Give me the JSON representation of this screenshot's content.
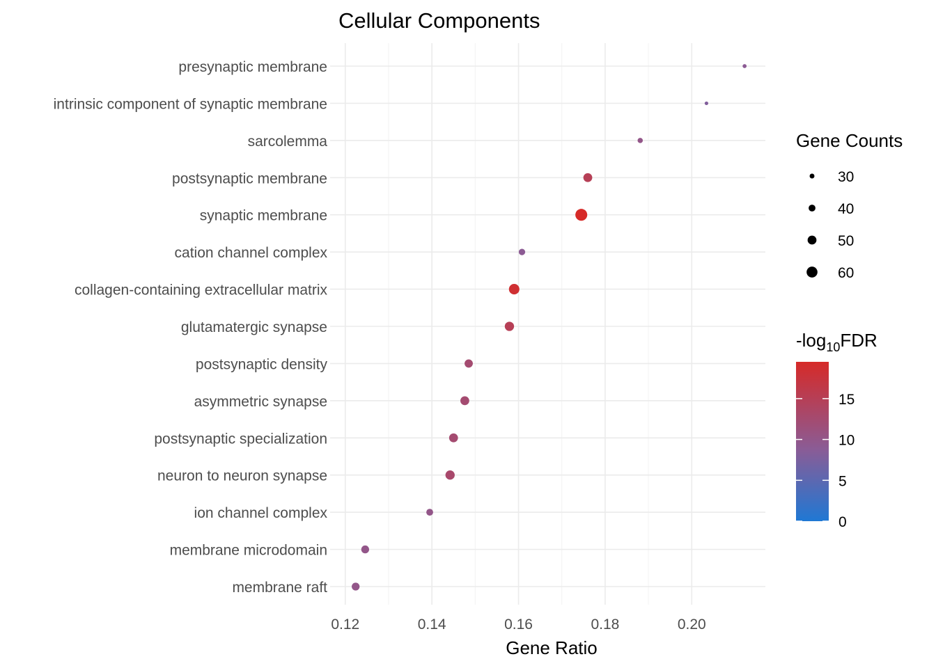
{
  "chart_data": {
    "type": "scatter",
    "title": "Cellular Components",
    "xlabel": "Gene Ratio",
    "ylabel": "",
    "xlim": [
      0.1165,
      0.217
    ],
    "x_ticks": [
      0.12,
      0.14,
      0.16,
      0.18,
      0.2
    ],
    "x_tick_labels": [
      "0.12",
      "0.14",
      "0.16",
      "0.18",
      "0.20"
    ],
    "grid": true,
    "categories": [
      "presynaptic membrane",
      "intrinsic component of synaptic membrane",
      "sarcolemma",
      "postsynaptic membrane",
      "synaptic membrane",
      "cation channel complex",
      "collagen-containing extracellular matrix",
      "glutamatergic synapse",
      "postsynaptic density",
      "asymmetric synapse",
      "postsynaptic specialization",
      "neuron to neuron synapse",
      "ion channel complex",
      "membrane microdomain",
      "membrane raft"
    ],
    "points": [
      {
        "term": "presynaptic membrane",
        "gene_ratio": 0.2122,
        "count": 26,
        "neg_log10_fdr": 9
      },
      {
        "term": "intrinsic component of synaptic membrane",
        "gene_ratio": 0.2034,
        "count": 24,
        "neg_log10_fdr": 8
      },
      {
        "term": "sarcolemma",
        "gene_ratio": 0.1881,
        "count": 32,
        "neg_log10_fdr": 10
      },
      {
        "term": "postsynaptic membrane",
        "gene_ratio": 0.176,
        "count": 50,
        "neg_log10_fdr": 15
      },
      {
        "term": "synaptic membrane",
        "gene_ratio": 0.1745,
        "count": 65,
        "neg_log10_fdr": 19.5
      },
      {
        "term": "cation channel complex",
        "gene_ratio": 0.1608,
        "count": 38,
        "neg_log10_fdr": 9
      },
      {
        "term": "collagen-containing extracellular matrix",
        "gene_ratio": 0.159,
        "count": 58,
        "neg_log10_fdr": 18.5
      },
      {
        "term": "glutamatergic synapse",
        "gene_ratio": 0.1579,
        "count": 52,
        "neg_log10_fdr": 15
      },
      {
        "term": "postsynaptic density",
        "gene_ratio": 0.1485,
        "count": 47,
        "neg_log10_fdr": 12.5
      },
      {
        "term": "asymmetric synapse",
        "gene_ratio": 0.1476,
        "count": 50,
        "neg_log10_fdr": 12.5
      },
      {
        "term": "postsynaptic specialization",
        "gene_ratio": 0.145,
        "count": 50,
        "neg_log10_fdr": 12.5
      },
      {
        "term": "neuron to neuron synapse",
        "gene_ratio": 0.1442,
        "count": 52,
        "neg_log10_fdr": 13
      },
      {
        "term": "ion channel complex",
        "gene_ratio": 0.1395,
        "count": 40,
        "neg_log10_fdr": 10
      },
      {
        "term": "membrane microdomain",
        "gene_ratio": 0.1246,
        "count": 45,
        "neg_log10_fdr": 10
      },
      {
        "term": "membrane raft",
        "gene_ratio": 0.1224,
        "count": 45,
        "neg_log10_fdr": 10
      }
    ],
    "size_legend": {
      "title": "Gene Counts",
      "values": [
        30,
        40,
        50,
        60
      ],
      "labels": [
        "30",
        "40",
        "50",
        "60"
      ]
    },
    "color_legend": {
      "title_prefix": "-log",
      "title_subscript": "10",
      "title_suffix": "FDR",
      "range": [
        0,
        19.5
      ],
      "ticks": [
        0,
        5,
        10,
        15
      ],
      "tick_labels": [
        "0",
        "5",
        "10",
        "15"
      ],
      "low_color": "#1f78d4",
      "high_color": "#d62a28"
    }
  }
}
